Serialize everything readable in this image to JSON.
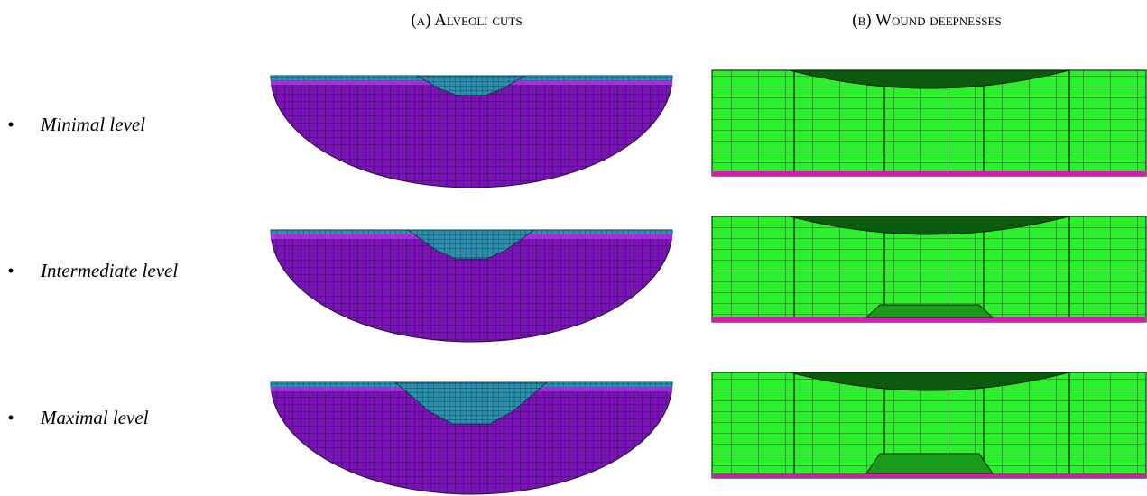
{
  "headers": [
    "(a) Alveoli cuts",
    "(b) Wound deepnesses"
  ],
  "rows": [
    "Minimal level",
    "Intermediate level",
    "Maximal level"
  ]
}
